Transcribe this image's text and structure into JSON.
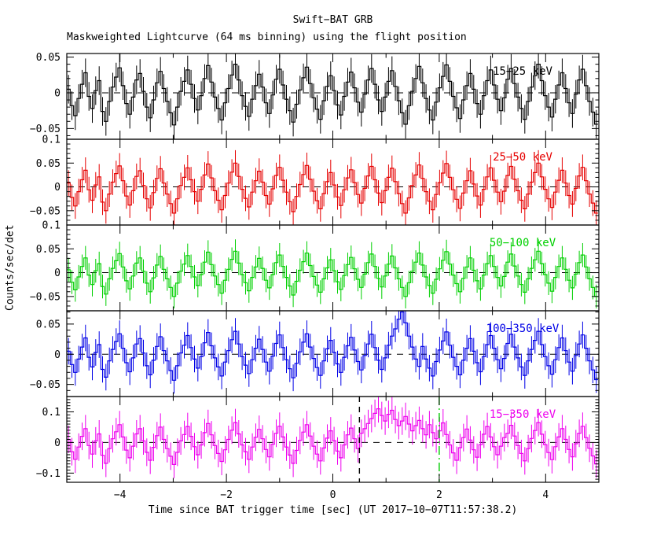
{
  "figure": {
    "title": "Swift−BAT GRB",
    "subtitle": "Maskweighted Lightcurve (64 ms binning) using the flight position",
    "xlabel": "Time since BAT trigger time [sec] (UT 2017−10−07T11:57:38.2)",
    "ylabel": "Counts/sec/det",
    "background_color": "#ffffff",
    "frame_color": "#000000"
  },
  "chart_data": {
    "type": "line",
    "subtype": "step-histogram-with-errorbars",
    "title": "Swift−BAT GRB",
    "xlabel": "Time since BAT trigger time [sec] (UT 2017−10−07T11:57:38.2)",
    "ylabel": "Counts/sec/det",
    "xlim": [
      -5,
      5
    ],
    "x_start": -5.0,
    "bin_sec": 0.064,
    "n_bins": 156,
    "xticks_labeled": [
      -4,
      -2,
      0,
      2,
      4
    ],
    "xtick_minor_step": 1,
    "grid": false,
    "zero_line": {
      "color": "#000000",
      "style": "dashed"
    },
    "value_unit": 0.001,
    "markers": [
      {
        "x": 0.5,
        "color": "#000000",
        "style": "dashed",
        "panel": 4
      },
      {
        "x": 2.0,
        "color": "#00cc00",
        "style": "dashdot",
        "panel": 4
      }
    ],
    "panels": [
      {
        "label": "15−25 keV",
        "color": "#000000",
        "ylim": [
          -0.065,
          0.055
        ],
        "yticks_labeled": [
          0.05,
          0,
          -0.05
        ],
        "ytick_minor_step": 0.01,
        "err_milli": 20,
        "values_milli": [
          5,
          -18,
          -32,
          -8,
          12,
          28,
          -5,
          -22,
          3,
          17,
          -26,
          -40,
          -12,
          8,
          22,
          35,
          10,
          -15,
          -30,
          -6,
          18,
          27,
          2,
          -20,
          -35,
          -10,
          14,
          30,
          6,
          -12,
          -28,
          -45,
          -20,
          2,
          16,
          32,
          12,
          -8,
          -24,
          -4,
          20,
          38,
          15,
          -6,
          -22,
          -38,
          -14,
          6,
          25,
          40,
          18,
          -4,
          -19,
          -33,
          -9,
          10,
          26,
          8,
          -14,
          -29,
          -3,
          19,
          33,
          11,
          -9,
          -25,
          -41,
          -16,
          4,
          21,
          36,
          13,
          -7,
          -23,
          -37,
          -11,
          9,
          24,
          3,
          -17,
          -31,
          -5,
          15,
          29,
          7,
          -13,
          -27,
          -2,
          18,
          34,
          12,
          -10,
          -26,
          -6,
          16,
          31,
          9,
          -11,
          -28,
          -44,
          -18,
          2,
          20,
          37,
          14,
          -8,
          -24,
          -38,
          -13,
          7,
          23,
          39,
          16,
          -5,
          -21,
          -36,
          -10,
          10,
          27,
          5,
          -15,
          -30,
          -4,
          17,
          32,
          11,
          -9,
          -25,
          -7,
          19,
          34,
          13,
          -6,
          -22,
          -37,
          -12,
          8,
          24,
          40,
          17,
          -4,
          -20,
          -34,
          -9,
          11,
          28,
          6,
          -14,
          -29,
          -2,
          18,
          33,
          10,
          -12,
          -27,
          -44
        ]
      },
      {
        "label": "25−50 keV",
        "color": "#e60000",
        "ylim": [
          -0.08,
          0.1
        ],
        "yticks_labeled": [
          0.1,
          0.05,
          0,
          -0.05
        ],
        "ytick_minor_step": 0.01,
        "err_milli": 27,
        "values_milli": [
          8,
          -22,
          -40,
          -10,
          15,
          35,
          -6,
          -28,
          4,
          21,
          -32,
          -50,
          -15,
          10,
          28,
          44,
          13,
          -19,
          -38,
          -8,
          22,
          34,
          3,
          -25,
          -44,
          -12,
          18,
          38,
          8,
          -15,
          -35,
          -55,
          -25,
          3,
          20,
          40,
          15,
          -10,
          -30,
          -5,
          25,
          48,
          19,
          -8,
          -28,
          -48,
          -18,
          8,
          31,
          50,
          22,
          -5,
          -24,
          -42,
          -11,
          13,
          33,
          10,
          -18,
          -36,
          -4,
          24,
          41,
          14,
          -11,
          -31,
          -52,
          -20,
          5,
          26,
          45,
          16,
          -9,
          -29,
          -46,
          -14,
          11,
          30,
          4,
          -21,
          -39,
          -6,
          19,
          36,
          9,
          -16,
          -34,
          -3,
          23,
          43,
          15,
          -13,
          -33,
          -8,
          20,
          39,
          11,
          -14,
          -35,
          -55,
          -23,
          3,
          25,
          46,
          18,
          -10,
          -30,
          -48,
          -16,
          9,
          29,
          49,
          20,
          -6,
          -26,
          -45,
          -13,
          13,
          34,
          6,
          -19,
          -38,
          -5,
          21,
          40,
          14,
          -11,
          -31,
          -9,
          24,
          43,
          16,
          -8,
          -28,
          -46,
          -15,
          10,
          30,
          50,
          21,
          -5,
          -25,
          -43,
          -11,
          14,
          35,
          8,
          -18,
          -36,
          -3,
          23,
          41,
          13,
          -15,
          -34,
          -55
        ]
      },
      {
        "label": "50−100 keV",
        "color": "#00d000",
        "ylim": [
          -0.08,
          0.1
        ],
        "yticks_labeled": [
          0.1,
          0.05,
          0,
          -0.05
        ],
        "ytick_minor_step": 0.01,
        "err_milli": 25,
        "values_milli": [
          6,
          -20,
          -36,
          -9,
          13,
          31,
          -5,
          -25,
          4,
          19,
          -29,
          -45,
          -13,
          9,
          25,
          40,
          12,
          -17,
          -34,
          -7,
          20,
          31,
          3,
          -22,
          -40,
          -11,
          16,
          34,
          7,
          -13,
          -31,
          -50,
          -22,
          3,
          18,
          36,
          13,
          -9,
          -27,
          -4,
          22,
          43,
          17,
          -7,
          -25,
          -43,
          -16,
          7,
          28,
          45,
          20,
          -4,
          -21,
          -38,
          -10,
          12,
          30,
          9,
          -16,
          -32,
          -4,
          21,
          37,
          13,
          -10,
          -28,
          -47,
          -18,
          5,
          23,
          41,
          15,
          -8,
          -26,
          -41,
          -13,
          10,
          27,
          4,
          -19,
          -35,
          -6,
          17,
          32,
          8,
          -14,
          -31,
          -3,
          21,
          39,
          13,
          -12,
          -30,
          -7,
          18,
          35,
          10,
          -13,
          -31,
          -50,
          -21,
          3,
          22,
          41,
          16,
          -9,
          -27,
          -43,
          -14,
          8,
          26,
          44,
          18,
          -5,
          -23,
          -40,
          -12,
          12,
          31,
          5,
          -17,
          -34,
          -5,
          19,
          36,
          13,
          -10,
          -28,
          -8,
          22,
          39,
          14,
          -7,
          -25,
          -41,
          -13,
          9,
          27,
          45,
          19,
          -4,
          -22,
          -39,
          -10,
          13,
          31,
          7,
          -16,
          -32,
          -3,
          21,
          37,
          12,
          -13,
          -31,
          -50
        ]
      },
      {
        "label": "100−350 keV",
        "color": "#0000e6",
        "ylim": [
          -0.07,
          0.072
        ],
        "yticks_labeled": [
          0.05,
          0,
          -0.05
        ],
        "ytick_minor_step": 0.01,
        "err_milli": 22,
        "values_milli": [
          5,
          -17,
          -30,
          -8,
          12,
          27,
          -5,
          -21,
          3,
          16,
          -25,
          -38,
          -11,
          8,
          21,
          34,
          10,
          -14,
          -29,
          -6,
          17,
          26,
          2,
          -19,
          -34,
          -10,
          13,
          29,
          6,
          -11,
          -27,
          -43,
          -19,
          2,
          15,
          31,
          11,
          -8,
          -23,
          -4,
          19,
          36,
          14,
          -6,
          -21,
          -36,
          -13,
          6,
          24,
          38,
          17,
          -4,
          -18,
          -32,
          -9,
          10,
          25,
          8,
          -13,
          -28,
          -3,
          18,
          32,
          11,
          -9,
          -24,
          -39,
          -15,
          4,
          20,
          34,
          12,
          -7,
          -22,
          -35,
          -11,
          9,
          23,
          3,
          -16,
          -30,
          -5,
          14,
          28,
          7,
          -12,
          -26,
          -2,
          17,
          33,
          11,
          -10,
          -25,
          -6,
          15,
          30,
          42,
          58,
          70,
          52,
          30,
          12,
          -8,
          -20,
          13,
          -8,
          -23,
          -36,
          -12,
          7,
          22,
          37,
          15,
          -5,
          -20,
          -34,
          -10,
          10,
          26,
          5,
          -14,
          -29,
          -4,
          16,
          31,
          10,
          -9,
          -24,
          -7,
          18,
          33,
          12,
          -6,
          -21,
          -35,
          -11,
          8,
          23,
          38,
          16,
          -4,
          -19,
          -33,
          -9,
          11,
          27,
          6,
          -13,
          -28,
          -2,
          17,
          32,
          10,
          -11,
          -26,
          -42
        ]
      },
      {
        "label": "15−350 keV",
        "color": "#ee00ee",
        "ylim": [
          -0.13,
          0.15
        ],
        "yticks_labeled": [
          0.1,
          0,
          -0.1
        ],
        "ytick_minor_step": 0.01,
        "err_milli": 45,
        "values_milli": [
          10,
          -30,
          -55,
          -15,
          20,
          45,
          -10,
          -38,
          5,
          28,
          -42,
          -68,
          -20,
          12,
          35,
          58,
          18,
          -25,
          -50,
          -12,
          28,
          45,
          5,
          -32,
          -58,
          -16,
          22,
          50,
          10,
          -20,
          -45,
          -72,
          -32,
          5,
          26,
          52,
          20,
          -14,
          -40,
          -8,
          32,
          62,
          25,
          -10,
          -36,
          -62,
          -24,
          10,
          40,
          65,
          28,
          -8,
          -30,
          -55,
          -15,
          17,
          43,
          12,
          -23,
          -47,
          -6,
          30,
          53,
          18,
          -15,
          -41,
          -68,
          -26,
          7,
          34,
          58,
          21,
          -12,
          -38,
          -60,
          -18,
          14,
          38,
          6,
          -28,
          -50,
          -8,
          25,
          47,
          12,
          -20,
          30,
          45,
          62,
          78,
          95,
          110,
          88,
          70,
          92,
          105,
          75,
          55,
          70,
          85,
          60,
          38,
          55,
          72,
          45,
          25,
          58,
          32,
          12,
          38,
          64,
          26,
          -8,
          -34,
          -58,
          -17,
          16,
          44,
          8,
          -24,
          -48,
          -7,
          27,
          52,
          18,
          -14,
          -40,
          -12,
          16,
          30,
          56,
          21,
          -10,
          -36,
          -60,
          -20,
          13,
          39,
          65,
          27,
          -7,
          -33,
          -56,
          -14,
          18,
          45,
          10,
          -23,
          -47,
          -4,
          30,
          53,
          16,
          -19,
          -44,
          -70
        ]
      }
    ]
  }
}
